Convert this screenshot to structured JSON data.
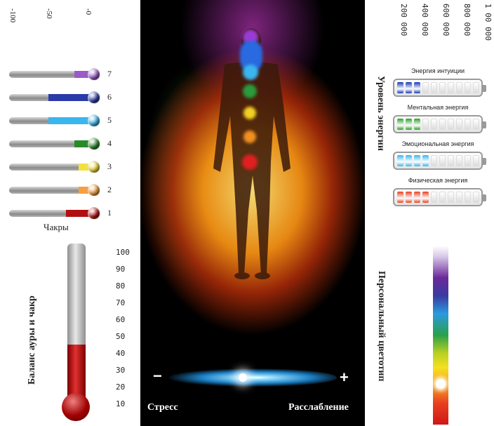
{
  "chakras": {
    "title": "Чакры",
    "scale_ticks": [
      "-100",
      "-50",
      "-0"
    ],
    "items": [
      {
        "number": "7",
        "level": 0.25,
        "color": "#9a5ac8"
      },
      {
        "number": "6",
        "level": 0.55,
        "color": "#2a3aa8"
      },
      {
        "number": "5",
        "level": 0.55,
        "color": "#3ab6ee"
      },
      {
        "number": "4",
        "level": 0.25,
        "color": "#2a8a2a"
      },
      {
        "number": "3",
        "level": 0.2,
        "color": "#f2e040"
      },
      {
        "number": "2",
        "level": 0.2,
        "color": "#f6a040"
      },
      {
        "number": "1",
        "level": 0.35,
        "color": "#b01010"
      }
    ]
  },
  "balance": {
    "title": "Баланс ауры и чакр",
    "scale": [
      "100",
      "90",
      "80",
      "70",
      "60",
      "50",
      "40",
      "30",
      "20",
      "10"
    ],
    "value": 50
  },
  "aura": {
    "stress_label": "Стресс",
    "relax_label": "Расслабление",
    "minus": "−",
    "plus": "+"
  },
  "energy": {
    "title": "Уровень энергии",
    "scale": [
      "200 000",
      "400 000",
      "600 000",
      "800 000",
      "1 00 000"
    ],
    "items": [
      {
        "name": "Энергия интуиции",
        "filled": 3,
        "color": "#1a3ab8"
      },
      {
        "name": "Ментальная энергия",
        "filled": 3,
        "color": "#2aa02a"
      },
      {
        "name": "Эмоциональная энергия",
        "filled": 4,
        "color": "#3ab6ee"
      },
      {
        "name": "Физическая энергия",
        "filled": 4,
        "color": "#e84020"
      }
    ]
  },
  "personal": {
    "title": "Персональный цветотип"
  }
}
